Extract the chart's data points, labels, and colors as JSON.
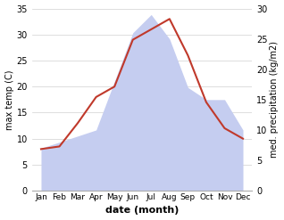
{
  "months": [
    "Jan",
    "Feb",
    "Mar",
    "Apr",
    "May",
    "Jun",
    "Jul",
    "Aug",
    "Sep",
    "Oct",
    "Nov",
    "Dec"
  ],
  "temperature": [
    8,
    8.5,
    13,
    18,
    20,
    29,
    31,
    33,
    26,
    17,
    12,
    10
  ],
  "precipitation": [
    7,
    8,
    9,
    10,
    18,
    26,
    29,
    25,
    17,
    15,
    15,
    10
  ],
  "temp_color": "#c0392b",
  "precip_fill_color": "#c5cdf0",
  "temp_ylim": [
    0,
    35
  ],
  "precip_ylim": [
    0,
    30
  ],
  "temp_yticks": [
    0,
    5,
    10,
    15,
    20,
    25,
    30,
    35
  ],
  "precip_yticks": [
    0,
    5,
    10,
    15,
    20,
    25,
    30
  ],
  "xlabel": "date (month)",
  "ylabel_left": "max temp (C)",
  "ylabel_right": "med. precipitation (kg/m2)",
  "bg_color": "#ffffff",
  "grid_color": "#d0d0d0"
}
